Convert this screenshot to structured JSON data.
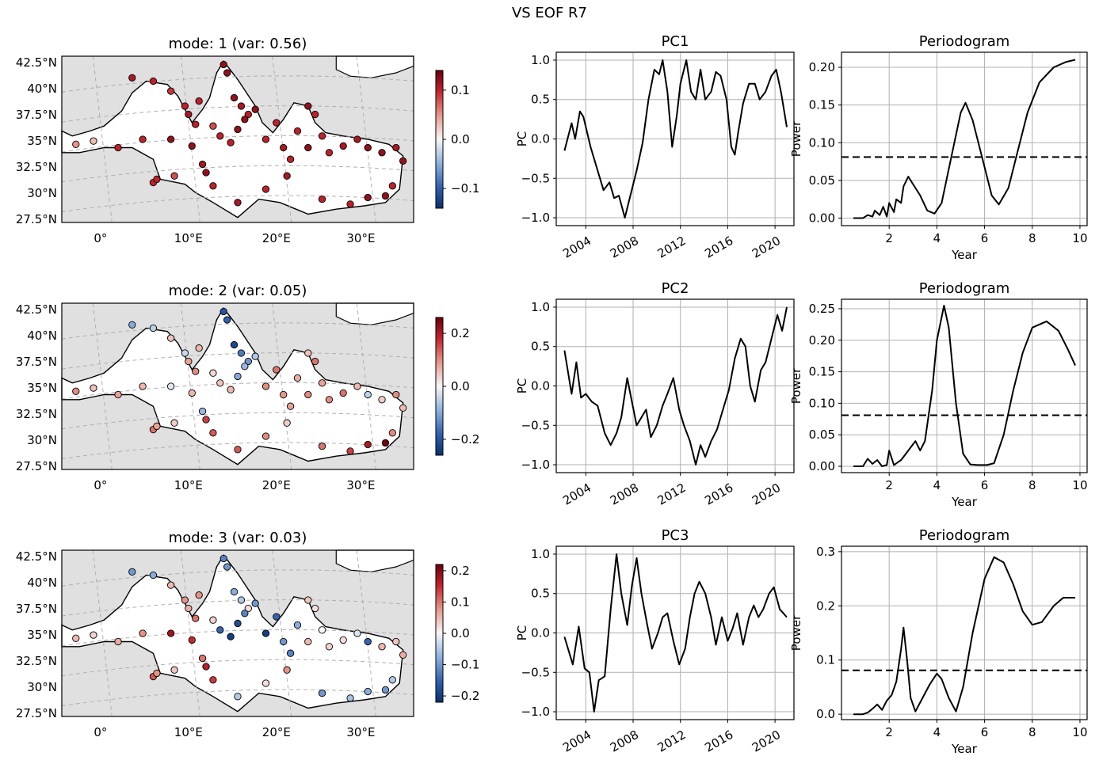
{
  "figure": {
    "title": "VS EOF R7"
  },
  "colors": {
    "land": "#e0e0e0",
    "sea": "#ffffff",
    "line": "#000000",
    "grid": "#b0b0b0",
    "pos": "#b40426",
    "neg": "#08306b"
  },
  "chart_data": [
    {
      "type": "scatter",
      "panel": "map",
      "title": "mode: 1 (var: 0.56)",
      "lat_ticks": [
        "42.5°N",
        "40°N",
        "37.5°N",
        "35°N",
        "32.5°N",
        "30°N",
        "27.5°N"
      ],
      "lon_ticks": [
        "0°",
        "10°E",
        "20°E",
        "30°E"
      ],
      "colorbar": {
        "ticks": [
          "0.1",
          "0.0",
          "−0.1"
        ],
        "vmin": -0.14,
        "vmax": 0.14,
        "cmap": "RdBu_r"
      },
      "station_values": [
        0.05,
        0.03,
        0.1,
        0.1,
        0.12,
        0.12,
        0.1,
        0.1,
        0.08,
        0.1,
        0.12,
        0.11,
        0.11,
        0.1,
        0.09,
        0.1,
        0.11,
        0.1,
        0.1,
        0.12,
        0.12,
        0.12,
        0.11,
        0.1,
        0.08,
        0.1,
        0.1,
        0.12,
        0.12,
        0.12,
        0.1,
        0.1,
        0.11,
        0.1,
        0.1,
        0.12,
        0.12,
        0.1,
        0.1,
        0.1,
        0.11,
        0.11,
        0.12,
        0.12,
        0.11,
        0.12,
        0.11,
        0.1,
        0.11,
        0.1,
        0.1,
        0.12,
        0.12,
        0.1
      ]
    },
    {
      "type": "line",
      "panel": "pc",
      "title": "PC1",
      "ylabel": "PC",
      "ylim": [
        -1.1,
        1.1
      ],
      "yticks": [
        "1.0",
        "0.5",
        "0.0",
        "−0.5",
        "−1.0"
      ],
      "xticks": [
        "2004",
        "2008",
        "2012",
        "2016",
        "2020"
      ],
      "x": [
        2002.2,
        2002.8,
        2003.1,
        2003.5,
        2003.8,
        2004.4,
        2005.0,
        2005.5,
        2006.0,
        2006.4,
        2006.8,
        2007.3,
        2007.8,
        2008.3,
        2008.8,
        2009.3,
        2009.8,
        2010.2,
        2010.5,
        2010.9,
        2011.3,
        2011.7,
        2012.0,
        2012.5,
        2012.9,
        2013.3,
        2013.7,
        2014.1,
        2014.6,
        2015.0,
        2015.4,
        2015.9,
        2016.3,
        2016.6,
        2016.9,
        2017.3,
        2017.8,
        2018.3,
        2018.7,
        2019.2,
        2019.7,
        2020.1,
        2020.5,
        2021.0
      ],
      "y": [
        -0.15,
        0.2,
        0.0,
        0.35,
        0.28,
        -0.1,
        -0.4,
        -0.65,
        -0.55,
        -0.75,
        -0.72,
        -1.0,
        -0.7,
        -0.4,
        -0.05,
        0.5,
        0.88,
        0.82,
        1.0,
        0.6,
        -0.1,
        0.3,
        0.7,
        1.0,
        0.6,
        0.5,
        0.88,
        0.5,
        0.6,
        0.85,
        0.8,
        0.5,
        -0.1,
        -0.2,
        0.1,
        0.45,
        0.7,
        0.7,
        0.5,
        0.6,
        0.8,
        0.88,
        0.6,
        0.15
      ]
    },
    {
      "type": "line",
      "panel": "periodogram",
      "title": "Periodogram",
      "xlabel": "Year",
      "ylabel": "Power",
      "ylim": [
        -0.01,
        0.22
      ],
      "xlim": [
        0,
        10.3
      ],
      "threshold": 0.081,
      "yticks": [
        "0.20",
        "0.15",
        "0.10",
        "0.05",
        "0.00"
      ],
      "xticks": [
        "2",
        "4",
        "6",
        "8",
        "10"
      ],
      "x": [
        0.5,
        0.9,
        1.1,
        1.3,
        1.4,
        1.6,
        1.75,
        1.9,
        2.0,
        2.2,
        2.3,
        2.5,
        2.6,
        2.8,
        3.0,
        3.3,
        3.6,
        3.9,
        4.2,
        4.6,
        5.0,
        5.2,
        5.5,
        5.9,
        6.3,
        6.6,
        7.0,
        7.4,
        7.8,
        8.3,
        8.9,
        9.4,
        9.8
      ],
      "y": [
        0.0,
        0.0,
        0.004,
        0.002,
        0.01,
        0.004,
        0.015,
        0.002,
        0.02,
        0.008,
        0.025,
        0.02,
        0.042,
        0.055,
        0.045,
        0.03,
        0.01,
        0.006,
        0.02,
        0.08,
        0.14,
        0.153,
        0.13,
        0.08,
        0.03,
        0.018,
        0.04,
        0.09,
        0.14,
        0.18,
        0.2,
        0.207,
        0.21
      ]
    },
    {
      "type": "scatter",
      "panel": "map",
      "title": "mode: 2 (var: 0.05)",
      "lat_ticks": [
        "42.5°N",
        "40°N",
        "37.5°N",
        "35°N",
        "32.5°N",
        "30°N",
        "27.5°N"
      ],
      "lon_ticks": [
        "0°",
        "10°E",
        "20°E",
        "30°E"
      ],
      "colorbar": {
        "ticks": [
          "0.2",
          "0.0",
          "−0.2"
        ],
        "vmin": -0.26,
        "vmax": 0.26,
        "cmap": "RdBu_r"
      },
      "station_values": [
        0.1,
        0.05,
        0.08,
        0.06,
        -0.02,
        0.06,
        0.12,
        0.08,
        0.04,
        0.14,
        0.16,
        -0.08,
        -0.1,
        -0.05,
        0.05,
        -0.04,
        0.08,
        0.1,
        0.06,
        -0.2,
        -0.18,
        -0.22,
        -0.15,
        -0.12,
        0.03,
        0.05,
        0.06,
        -0.1,
        -0.08,
        -0.06,
        0.1,
        0.12,
        0.09,
        0.08,
        0.07,
        0.05,
        0.1,
        0.12,
        0.08,
        0.1,
        0.12,
        0.06,
        -0.05,
        0.04,
        0.1,
        0.06,
        0.04,
        0.1,
        0.14,
        0.12,
        0.16,
        0.2,
        0.25,
        0.1
      ]
    },
    {
      "type": "line",
      "panel": "pc",
      "title": "PC2",
      "ylabel": "PC",
      "ylim": [
        -1.1,
        1.1
      ],
      "yticks": [
        "1.0",
        "0.5",
        "0.0",
        "−0.5",
        "−1.0"
      ],
      "xticks": [
        "2004",
        "2008",
        "2012",
        "2016",
        "2020"
      ],
      "x": [
        2002.2,
        2002.8,
        2003.2,
        2003.6,
        2004.0,
        2004.5,
        2005.0,
        2005.6,
        2006.1,
        2006.6,
        2007.0,
        2007.5,
        2007.9,
        2008.3,
        2008.7,
        2009.1,
        2009.5,
        2010.0,
        2010.5,
        2010.9,
        2011.4,
        2011.9,
        2012.3,
        2012.8,
        2013.3,
        2013.7,
        2014.1,
        2014.6,
        2015.1,
        2015.6,
        2016.1,
        2016.6,
        2017.1,
        2017.5,
        2017.9,
        2018.3,
        2018.8,
        2019.2,
        2019.7,
        2020.2,
        2020.6,
        2021.0
      ],
      "y": [
        0.45,
        -0.1,
        0.3,
        -0.15,
        -0.1,
        -0.2,
        -0.25,
        -0.6,
        -0.75,
        -0.6,
        -0.4,
        0.1,
        -0.2,
        -0.5,
        -0.4,
        -0.3,
        -0.65,
        -0.5,
        -0.25,
        -0.1,
        0.1,
        -0.3,
        -0.5,
        -0.7,
        -1.0,
        -0.75,
        -0.9,
        -0.7,
        -0.55,
        -0.3,
        -0.05,
        0.35,
        0.6,
        0.5,
        0.0,
        -0.2,
        0.2,
        0.3,
        0.6,
        0.9,
        0.7,
        1.0
      ]
    },
    {
      "type": "line",
      "panel": "periodogram",
      "title": "Periodogram",
      "xlabel": "Year",
      "ylabel": "Power",
      "ylim": [
        -0.01,
        0.265
      ],
      "xlim": [
        0,
        10.3
      ],
      "threshold": 0.081,
      "yticks": [
        "0.25",
        "0.20",
        "0.15",
        "0.10",
        "0.05",
        "0.00"
      ],
      "xticks": [
        "2",
        "4",
        "6",
        "8",
        "10"
      ],
      "x": [
        0.5,
        0.9,
        1.1,
        1.3,
        1.5,
        1.7,
        1.9,
        2.0,
        2.2,
        2.5,
        2.7,
        2.9,
        3.1,
        3.3,
        3.5,
        3.8,
        4.0,
        4.3,
        4.5,
        4.8,
        5.1,
        5.4,
        5.7,
        6.1,
        6.4,
        6.8,
        7.2,
        7.6,
        8.0,
        8.6,
        9.1,
        9.5,
        9.8
      ],
      "y": [
        0.0,
        0.0,
        0.012,
        0.004,
        0.01,
        0.0,
        0.002,
        0.025,
        0.002,
        0.01,
        0.02,
        0.03,
        0.04,
        0.025,
        0.04,
        0.12,
        0.2,
        0.255,
        0.22,
        0.1,
        0.02,
        0.003,
        0.002,
        0.002,
        0.005,
        0.05,
        0.12,
        0.18,
        0.22,
        0.23,
        0.215,
        0.185,
        0.16
      ]
    },
    {
      "type": "scatter",
      "panel": "map",
      "title": "mode: 3 (var: 0.03)",
      "lat_ticks": [
        "42.5°N",
        "40°N",
        "37.5°N",
        "35°N",
        "32.5°N",
        "30°N",
        "27.5°N"
      ],
      "lon_ticks": [
        "0°",
        "10°E",
        "20°E",
        "30°E"
      ],
      "colorbar": {
        "ticks": [
          "0.2",
          "0.1",
          "0.0",
          "−0.1",
          "−0.2"
        ],
        "vmin": -0.22,
        "vmax": 0.22,
        "cmap": "RdBu_r"
      },
      "station_values": [
        0.05,
        0.03,
        0.06,
        0.08,
        0.18,
        0.15,
        0.12,
        0.08,
        0.04,
        0.14,
        0.16,
        0.1,
        -0.1,
        -0.08,
        0.05,
        0.08,
        0.06,
        0.1,
        0.08,
        -0.12,
        -0.1,
        -0.08,
        -0.05,
        0.02,
        0.03,
        -0.15,
        -0.2,
        -0.18,
        -0.12,
        -0.1,
        -0.2,
        -0.15,
        -0.1,
        -0.12,
        -0.08,
        0.04,
        0.05,
        0.02,
        0.0,
        0.03,
        0.02,
        -0.02,
        -0.15,
        0.05,
        0.04,
        0.06,
        0.08,
        0.02,
        -0.05,
        -0.1,
        -0.06,
        -0.08,
        -0.1,
        -0.05
      ]
    },
    {
      "type": "line",
      "panel": "pc",
      "title": "PC3",
      "ylabel": "PC",
      "ylim": [
        -1.1,
        1.1
      ],
      "yticks": [
        "1.0",
        "0.5",
        "0.0",
        "−0.5",
        "−1.0"
      ],
      "xticks": [
        "2004",
        "2008",
        "2012",
        "2016",
        "2020"
      ],
      "x": [
        2002.2,
        2002.9,
        2003.4,
        2003.9,
        2004.3,
        2004.7,
        2005.1,
        2005.6,
        2006.1,
        2006.6,
        2007.0,
        2007.5,
        2007.9,
        2008.3,
        2008.7,
        2009.2,
        2009.6,
        2010.1,
        2010.5,
        2010.9,
        2011.4,
        2011.9,
        2012.4,
        2012.8,
        2013.2,
        2013.6,
        2014.1,
        2014.6,
        2015.0,
        2015.5,
        2016.0,
        2016.4,
        2016.8,
        2017.3,
        2017.8,
        2018.2,
        2018.6,
        2019.0,
        2019.5,
        2019.9,
        2020.4,
        2020.7,
        2021.0
      ],
      "y": [
        -0.05,
        -0.4,
        0.08,
        -0.45,
        -0.5,
        -1.0,
        -0.6,
        -0.55,
        0.3,
        1.0,
        0.5,
        0.1,
        0.6,
        0.95,
        0.5,
        0.1,
        -0.2,
        0.0,
        0.2,
        0.25,
        -0.1,
        -0.4,
        -0.2,
        0.2,
        0.5,
        0.65,
        0.5,
        0.2,
        -0.15,
        0.2,
        -0.1,
        0.05,
        0.25,
        -0.15,
        0.2,
        0.35,
        0.2,
        0.3,
        0.5,
        0.58,
        0.3,
        0.25,
        0.2
      ]
    },
    {
      "type": "line",
      "panel": "periodogram",
      "title": "Periodogram",
      "xlabel": "Year",
      "ylabel": "Power",
      "ylim": [
        -0.01,
        0.31
      ],
      "xlim": [
        0,
        10.3
      ],
      "threshold": 0.081,
      "yticks": [
        "0.3",
        "0.2",
        "0.1",
        "0.0"
      ],
      "xticks": [
        "2",
        "4",
        "6",
        "8",
        "10"
      ],
      "x": [
        0.5,
        0.9,
        1.1,
        1.3,
        1.5,
        1.7,
        1.9,
        2.1,
        2.3,
        2.5,
        2.6,
        2.75,
        2.9,
        3.1,
        3.4,
        3.7,
        4.0,
        4.2,
        4.5,
        4.8,
        5.1,
        5.5,
        6.0,
        6.4,
        6.8,
        7.2,
        7.6,
        8.0,
        8.4,
        8.9,
        9.3,
        9.8
      ],
      "y": [
        0.0,
        0.0,
        0.003,
        0.01,
        0.018,
        0.008,
        0.025,
        0.035,
        0.06,
        0.12,
        0.16,
        0.1,
        0.03,
        0.005,
        0.03,
        0.055,
        0.075,
        0.065,
        0.03,
        0.005,
        0.05,
        0.15,
        0.25,
        0.29,
        0.28,
        0.24,
        0.19,
        0.165,
        0.17,
        0.2,
        0.215,
        0.215
      ]
    }
  ]
}
